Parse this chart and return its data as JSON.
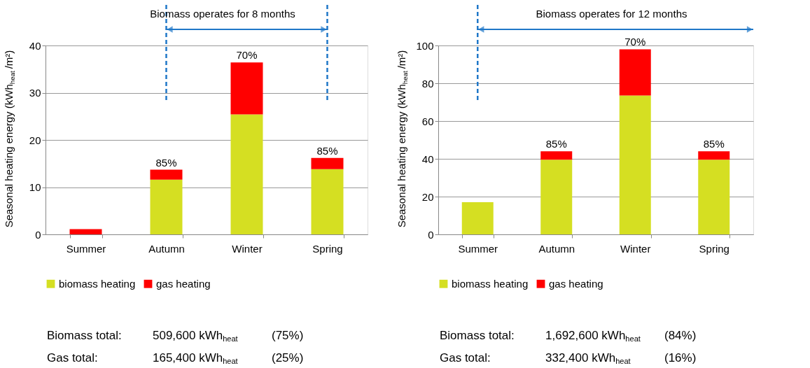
{
  "chart_data": [
    {
      "type": "bar",
      "stacked": true,
      "ylabel": "Seasonal heating energy (kWh$_{heat}$/m²)",
      "categories": [
        "Summer",
        "Autumn",
        "Winter",
        "Spring"
      ],
      "series": [
        {
          "name": "biomass heating",
          "color": "#d5df22",
          "values": [
            0,
            11.6,
            25.4,
            13.8
          ]
        },
        {
          "name": "gas heating",
          "color": "#ff0000",
          "values": [
            1.1,
            2.1,
            11.0,
            2.4
          ]
        }
      ],
      "ylim": [
        0,
        40
      ],
      "yticks": [
        0,
        10,
        20,
        30,
        40
      ],
      "grid": "y",
      "legend": "bottom",
      "ref_lines": [
        {
          "axis": "x",
          "value": "Autumn",
          "color": "#1f77c8",
          "line_style": "dashed"
        },
        {
          "axis": "x",
          "value": "Spring",
          "color": "#1f77c8",
          "line_style": "dashed"
        }
      ],
      "annotations": [
        "Biomass operates for 8 months",
        {
          "text": "85%",
          "x": "Autumn",
          "y": 13.7
        },
        {
          "text": "70%",
          "x": "Winter",
          "y": 36.4
        },
        {
          "text": "85%",
          "x": "Spring",
          "y": 16.2
        },
        "Biomass total:",
        "509,600 kWh$_{heat}$",
        "(75%)",
        "Gas total:",
        "165,400 kWh$_{heat}$",
        "(25%)"
      ]
    },
    {
      "type": "bar",
      "stacked": true,
      "ylabel": "Seasonal heating energy (kWh$_{heat}$/m²)",
      "categories": [
        "Summer",
        "Autumn",
        "Winter",
        "Spring"
      ],
      "series": [
        {
          "name": "biomass heating",
          "color": "#d5df22",
          "values": [
            17,
            39.5,
            73.5,
            39.5
          ]
        },
        {
          "name": "gas heating",
          "color": "#ff0000",
          "values": [
            0,
            4.5,
            24.5,
            4.5
          ]
        }
      ],
      "ylim": [
        0,
        100
      ],
      "yticks": [
        0,
        20,
        40,
        60,
        80,
        100
      ],
      "grid": "y",
      "legend": "bottom",
      "ref_lines": [
        {
          "axis": "x",
          "value": "Summer",
          "color": "#1f77c8",
          "line_style": "dashed"
        }
      ],
      "annotations": [
        "Biomass operates for 12 months",
        {
          "text": "85%",
          "x": "Autumn",
          "y": 43.9
        },
        {
          "text": "70%",
          "x": "Winter",
          "y": 98
        },
        {
          "text": "85%",
          "x": "Spring",
          "y": 43.9
        },
        "Biomass total:",
        "1,692,600 kWh$_{heat}$",
        "(84%)",
        "Gas total:",
        "332,400 kWh$_{heat}$",
        "(16%)"
      ]
    }
  ]
}
